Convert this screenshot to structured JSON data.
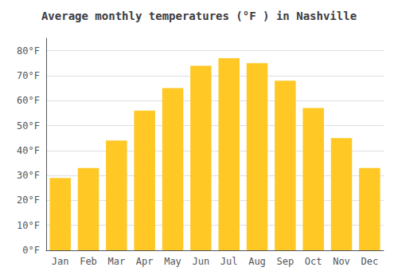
{
  "chart_data": {
    "type": "bar",
    "title": "Average monthly temperatures (°F ) in Nashville",
    "categories": [
      "Jan",
      "Feb",
      "Mar",
      "Apr",
      "May",
      "Jun",
      "Jul",
      "Aug",
      "Sep",
      "Oct",
      "Nov",
      "Dec"
    ],
    "values": [
      29,
      33,
      44,
      56,
      65,
      74,
      77,
      75,
      68,
      57,
      45,
      33
    ],
    "color": "#FFC825",
    "ylim": [
      0,
      85
    ],
    "yticks": [
      {
        "value": 0,
        "label": "0°F"
      },
      {
        "value": 10,
        "label": "10°F"
      },
      {
        "value": 20,
        "label": "20°F"
      },
      {
        "value": 30,
        "label": "30°F"
      },
      {
        "value": 40,
        "label": "40°F"
      },
      {
        "value": 50,
        "label": "50°F"
      },
      {
        "value": 60,
        "label": "60°F"
      },
      {
        "value": 70,
        "label": "70°F"
      },
      {
        "value": 80,
        "label": "80°F"
      }
    ],
    "grid": true
  }
}
